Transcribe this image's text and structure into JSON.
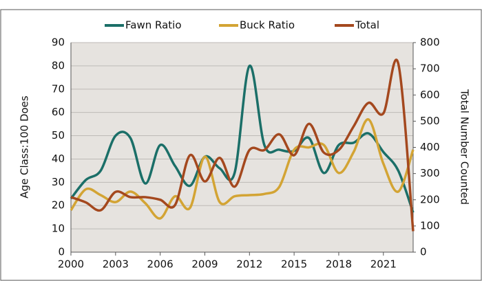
{
  "chart_data": {
    "type": "line",
    "x": [
      2000,
      2001,
      2002,
      2003,
      2004,
      2005,
      2006,
      2007,
      2008,
      2009,
      2010,
      2011,
      2012,
      2013,
      2014,
      2015,
      2016,
      2017,
      2018,
      2019,
      2020,
      2021,
      2022,
      2023
    ],
    "series": [
      {
        "name": "Fawn Ratio",
        "color": "#1b6f68",
        "values": [
          23,
          31,
          35,
          50,
          49,
          29.5,
          46,
          37,
          28.5,
          41,
          36,
          34,
          80,
          46,
          44,
          43.5,
          49,
          34,
          46,
          47,
          51,
          43,
          35,
          17
        ]
      },
      {
        "name": "Buck Ratio",
        "color": "#d3a434",
        "values": [
          18,
          27,
          24.5,
          21.5,
          26,
          21,
          14.5,
          24,
          19,
          41,
          21.5,
          24,
          24.5,
          25,
          28,
          44,
          45,
          46,
          34,
          43,
          57,
          38,
          26,
          44
        ]
      },
      {
        "name": "Total",
        "color": "#a4481e",
        "axis": "y2",
        "values": [
          210,
          190,
          160,
          230,
          210,
          210,
          200,
          180,
          370,
          270,
          360,
          250,
          390,
          390,
          450,
          370,
          490,
          380,
          390,
          480,
          570,
          530,
          720,
          80
        ]
      }
    ],
    "xlim": [
      2000,
      2023
    ],
    "xticks": [
      2000,
      2003,
      2006,
      2009,
      2012,
      2015,
      2018,
      2021
    ],
    "ylim": [
      0,
      90
    ],
    "yticks": [
      0,
      10,
      20,
      30,
      40,
      50,
      60,
      70,
      80,
      90
    ],
    "y2lim": [
      0,
      800
    ],
    "y2ticks": [
      0,
      100,
      200,
      300,
      400,
      500,
      600,
      700,
      800
    ],
    "ylabel": "Age Class:100 Does",
    "y2label": "Total Number Counted",
    "grid": true,
    "legend": "top"
  }
}
